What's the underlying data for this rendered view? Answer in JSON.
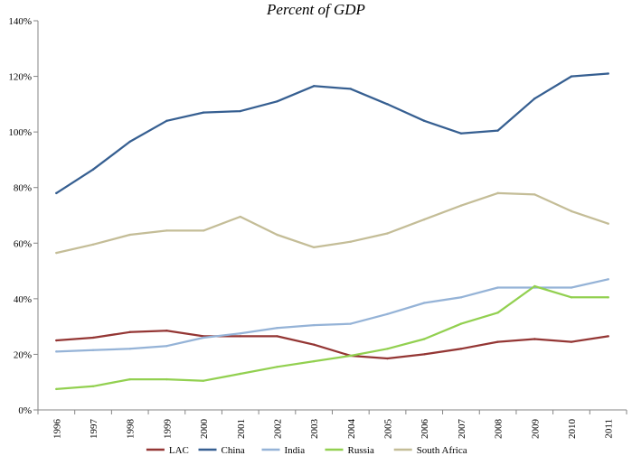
{
  "chart_data": {
    "type": "line",
    "title": "Percent of GDP",
    "xlabel": "",
    "ylabel": "",
    "ylim": [
      0,
      140
    ],
    "yticks": [
      0,
      20,
      40,
      60,
      80,
      100,
      120,
      140
    ],
    "ytick_labels": [
      "0%",
      "20%",
      "40%",
      "60%",
      "80%",
      "100%",
      "120%",
      "140%"
    ],
    "grid": false,
    "legend_position": "bottom",
    "categories": [
      "1996",
      "1997",
      "1998",
      "1999",
      "2000",
      "2001",
      "2002",
      "2003",
      "2004",
      "2005",
      "2006",
      "2007",
      "2008",
      "2009",
      "2010",
      "2011"
    ],
    "series": [
      {
        "name": "LAC",
        "color": "#943634",
        "values": [
          25,
          26,
          28,
          28.5,
          26.5,
          26.5,
          26.5,
          23.5,
          19.5,
          18.5,
          20,
          22,
          24.5,
          25.5,
          24.5,
          26.5
        ]
      },
      {
        "name": "China",
        "color": "#365f91",
        "values": [
          78,
          86.5,
          96.5,
          104,
          107,
          107.5,
          111,
          116.5,
          115.5,
          110,
          104,
          99.5,
          100.5,
          112,
          120,
          121
        ]
      },
      {
        "name": "India",
        "color": "#95b3d7",
        "values": [
          21,
          21.5,
          22,
          23,
          26,
          27.5,
          29.5,
          30.5,
          31,
          34.5,
          38.5,
          40.5,
          44,
          44,
          44,
          47
        ]
      },
      {
        "name": "Russia",
        "color": "#92d050",
        "values": [
          7.5,
          8.5,
          11,
          11,
          10.5,
          13,
          15.5,
          17.5,
          19.5,
          22,
          25.5,
          31,
          35,
          44.5,
          40.5,
          40.5
        ]
      },
      {
        "name": "South Africa",
        "color": "#c4bd97",
        "values": [
          56.5,
          59.5,
          63,
          64.5,
          64.5,
          69.5,
          63,
          58.5,
          60.5,
          63.5,
          68.5,
          73.5,
          78,
          77.5,
          71.5,
          67
        ]
      }
    ]
  }
}
